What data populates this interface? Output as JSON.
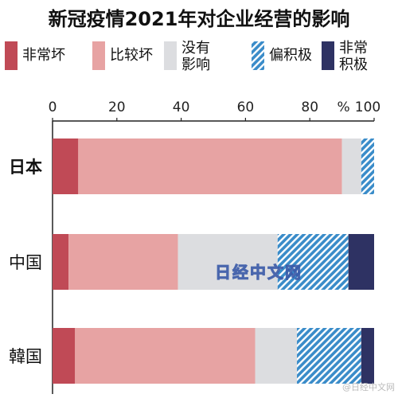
{
  "chart_data": {
    "type": "bar",
    "orientation": "horizontal",
    "stacked": true,
    "title": "新冠疫情2021年对企业经营的影响",
    "categories": [
      "日本",
      "中国",
      "韓国"
    ],
    "series": [
      {
        "name": "非常坏",
        "values": [
          8,
          5,
          7
        ],
        "color": "#c04a56"
      },
      {
        "name": "比较坏",
        "values": [
          82,
          34,
          56
        ],
        "color": "#e7a3a3"
      },
      {
        "name": "没有影响",
        "values": [
          6,
          31,
          13
        ],
        "color": "#dcdde0"
      },
      {
        "name": "偏积极",
        "values": [
          4,
          22,
          20
        ],
        "color": "#3a8cc9"
      },
      {
        "name": "非常积极",
        "values": [
          0,
          8,
          4
        ],
        "color": "#2e3263"
      }
    ],
    "xlim": [
      0,
      100
    ],
    "ticks": [
      "0",
      "20",
      "40",
      "60",
      "80",
      "100"
    ],
    "unit": "%",
    "grid": false
  },
  "legend": [
    {
      "lines": [
        "非常坏"
      ]
    },
    {
      "lines": [
        "比较坏"
      ]
    },
    {
      "lines": [
        "没有",
        "影响"
      ]
    },
    {
      "lines": [
        "偏积极"
      ]
    },
    {
      "lines": [
        "非常",
        "积极"
      ]
    }
  ],
  "watermark": "日经中文网",
  "credit": "@日经中文网"
}
